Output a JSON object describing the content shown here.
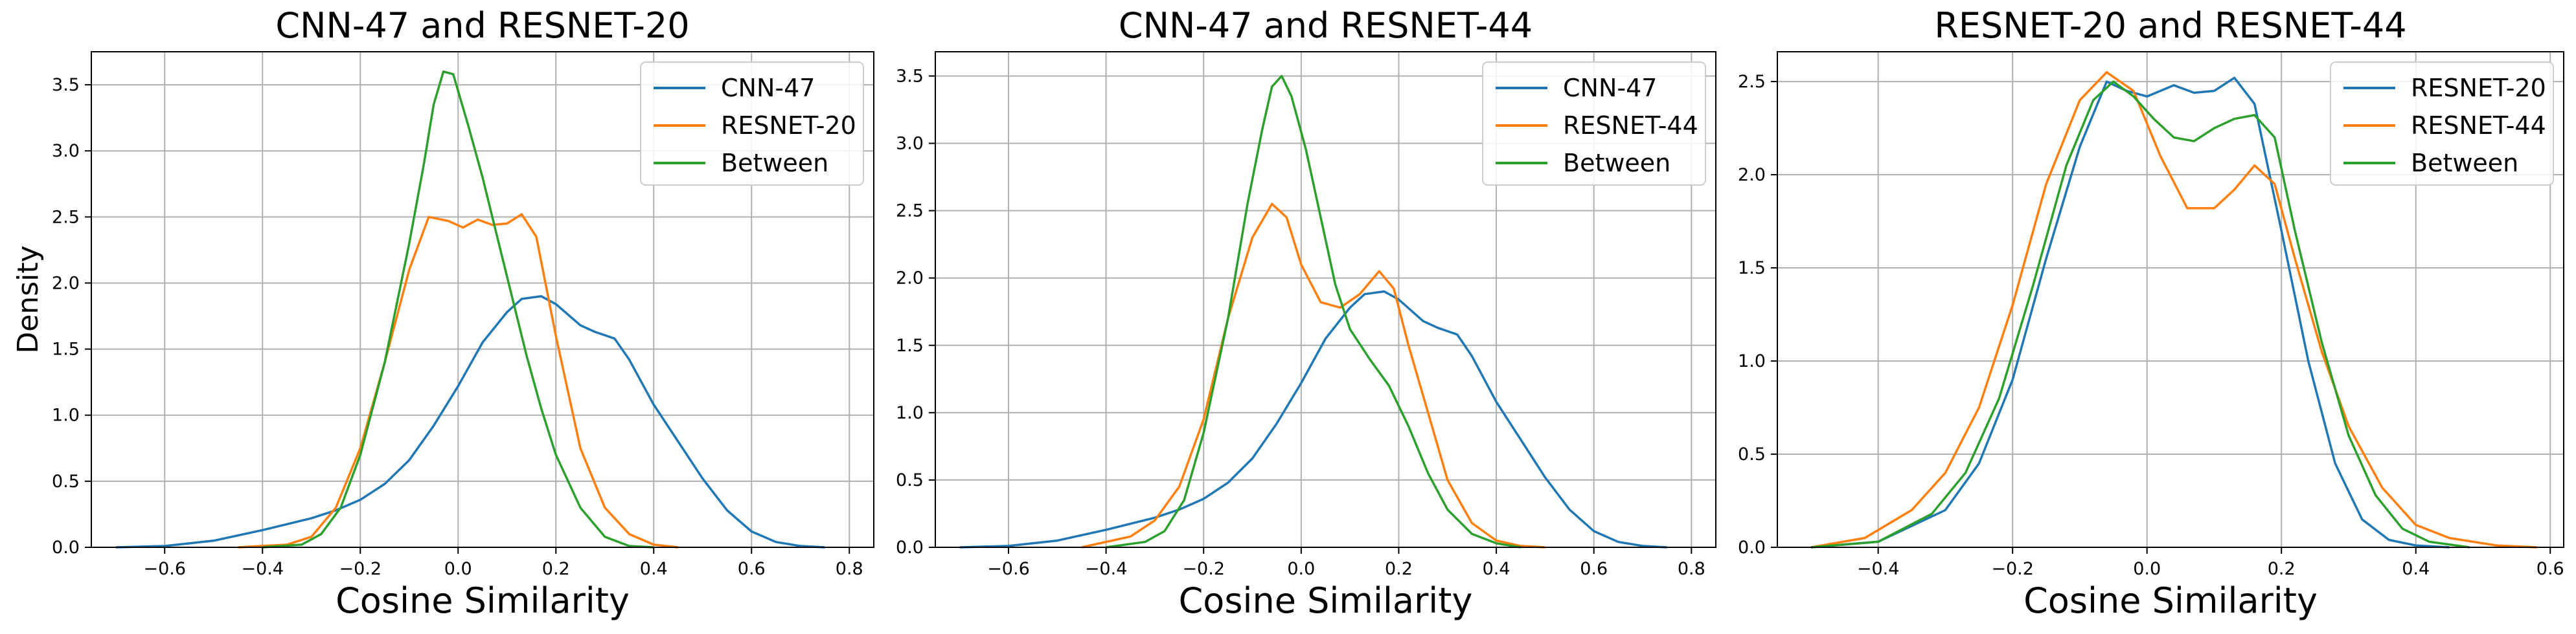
{
  "chart_data": [
    {
      "type": "line",
      "title": "CNN-47 and RESNET-20",
      "xlabel": "Cosine Similarity",
      "ylabel": "Density",
      "xlim": [
        -0.75,
        0.85
      ],
      "ylim": [
        0,
        3.75
      ],
      "xticks": [
        "−0.6",
        "−0.4",
        "−0.2",
        "0.0",
        "0.2",
        "0.4",
        "0.6",
        "0.8"
      ],
      "xtick_values": [
        -0.6,
        -0.4,
        -0.2,
        0.0,
        0.2,
        0.4,
        0.6,
        0.8
      ],
      "yticks": [
        "0.0",
        "0.5",
        "1.0",
        "1.5",
        "2.0",
        "2.5",
        "3.0",
        "3.5"
      ],
      "ytick_values": [
        0,
        0.5,
        1.0,
        1.5,
        2.0,
        2.5,
        3.0,
        3.5
      ],
      "grid": true,
      "legend": "top-right",
      "series": [
        {
          "name": "CNN-47",
          "color": "#1f77b4",
          "points": [
            [
              -0.7,
              0
            ],
            [
              -0.6,
              0.01
            ],
            [
              -0.5,
              0.05
            ],
            [
              -0.4,
              0.13
            ],
            [
              -0.3,
              0.22
            ],
            [
              -0.25,
              0.28
            ],
            [
              -0.2,
              0.36
            ],
            [
              -0.15,
              0.48
            ],
            [
              -0.1,
              0.66
            ],
            [
              -0.05,
              0.92
            ],
            [
              0.0,
              1.22
            ],
            [
              0.05,
              1.55
            ],
            [
              0.1,
              1.78
            ],
            [
              0.13,
              1.88
            ],
            [
              0.17,
              1.9
            ],
            [
              0.2,
              1.84
            ],
            [
              0.25,
              1.68
            ],
            [
              0.28,
              1.63
            ],
            [
              0.32,
              1.58
            ],
            [
              0.35,
              1.42
            ],
            [
              0.4,
              1.08
            ],
            [
              0.45,
              0.8
            ],
            [
              0.5,
              0.52
            ],
            [
              0.55,
              0.28
            ],
            [
              0.6,
              0.12
            ],
            [
              0.65,
              0.04
            ],
            [
              0.7,
              0.01
            ],
            [
              0.75,
              0
            ]
          ]
        },
        {
          "name": "RESNET-20",
          "color": "#ff7f0e",
          "points": [
            [
              -0.45,
              0
            ],
            [
              -0.35,
              0.02
            ],
            [
              -0.3,
              0.08
            ],
            [
              -0.25,
              0.3
            ],
            [
              -0.2,
              0.75
            ],
            [
              -0.15,
              1.4
            ],
            [
              -0.1,
              2.1
            ],
            [
              -0.06,
              2.5
            ],
            [
              -0.02,
              2.47
            ],
            [
              0.01,
              2.42
            ],
            [
              0.04,
              2.48
            ],
            [
              0.07,
              2.44
            ],
            [
              0.1,
              2.45
            ],
            [
              0.13,
              2.52
            ],
            [
              0.16,
              2.35
            ],
            [
              0.2,
              1.6
            ],
            [
              0.25,
              0.75
            ],
            [
              0.3,
              0.3
            ],
            [
              0.35,
              0.1
            ],
            [
              0.4,
              0.02
            ],
            [
              0.45,
              0
            ]
          ]
        },
        {
          "name": "Between",
          "color": "#2ca02c",
          "points": [
            [
              -0.4,
              0
            ],
            [
              -0.32,
              0.02
            ],
            [
              -0.28,
              0.1
            ],
            [
              -0.24,
              0.3
            ],
            [
              -0.2,
              0.7
            ],
            [
              -0.15,
              1.4
            ],
            [
              -0.1,
              2.3
            ],
            [
              -0.07,
              2.9
            ],
            [
              -0.05,
              3.35
            ],
            [
              -0.03,
              3.6
            ],
            [
              -0.01,
              3.58
            ],
            [
              0.02,
              3.2
            ],
            [
              0.05,
              2.8
            ],
            [
              0.08,
              2.35
            ],
            [
              0.11,
              1.9
            ],
            [
              0.14,
              1.45
            ],
            [
              0.17,
              1.05
            ],
            [
              0.2,
              0.7
            ],
            [
              0.25,
              0.3
            ],
            [
              0.3,
              0.08
            ],
            [
              0.35,
              0.01
            ],
            [
              0.4,
              0
            ]
          ]
        }
      ]
    },
    {
      "type": "line",
      "title": "CNN-47 and RESNET-44",
      "xlabel": "Cosine Similarity",
      "ylabel": "",
      "xlim": [
        -0.75,
        0.85
      ],
      "ylim": [
        0,
        3.68
      ],
      "xticks": [
        "−0.6",
        "−0.4",
        "−0.2",
        "0.0",
        "0.2",
        "0.4",
        "0.6",
        "0.8"
      ],
      "xtick_values": [
        -0.6,
        -0.4,
        -0.2,
        0.0,
        0.2,
        0.4,
        0.6,
        0.8
      ],
      "yticks": [
        "0.0",
        "0.5",
        "1.0",
        "1.5",
        "2.0",
        "2.5",
        "3.0",
        "3.5"
      ],
      "ytick_values": [
        0,
        0.5,
        1.0,
        1.5,
        2.0,
        2.5,
        3.0,
        3.5
      ],
      "grid": true,
      "legend": "top-right",
      "series": [
        {
          "name": "CNN-47",
          "color": "#1f77b4",
          "points": [
            [
              -0.7,
              0
            ],
            [
              -0.6,
              0.01
            ],
            [
              -0.5,
              0.05
            ],
            [
              -0.4,
              0.13
            ],
            [
              -0.3,
              0.22
            ],
            [
              -0.25,
              0.28
            ],
            [
              -0.2,
              0.36
            ],
            [
              -0.15,
              0.48
            ],
            [
              -0.1,
              0.66
            ],
            [
              -0.05,
              0.92
            ],
            [
              0.0,
              1.22
            ],
            [
              0.05,
              1.55
            ],
            [
              0.1,
              1.78
            ],
            [
              0.13,
              1.88
            ],
            [
              0.17,
              1.9
            ],
            [
              0.2,
              1.84
            ],
            [
              0.25,
              1.68
            ],
            [
              0.28,
              1.63
            ],
            [
              0.32,
              1.58
            ],
            [
              0.35,
              1.42
            ],
            [
              0.4,
              1.08
            ],
            [
              0.45,
              0.8
            ],
            [
              0.5,
              0.52
            ],
            [
              0.55,
              0.28
            ],
            [
              0.6,
              0.12
            ],
            [
              0.65,
              0.04
            ],
            [
              0.7,
              0.01
            ],
            [
              0.75,
              0
            ]
          ]
        },
        {
          "name": "RESNET-44",
          "color": "#ff7f0e",
          "points": [
            [
              -0.45,
              0
            ],
            [
              -0.35,
              0.08
            ],
            [
              -0.3,
              0.2
            ],
            [
              -0.25,
              0.45
            ],
            [
              -0.2,
              0.95
            ],
            [
              -0.15,
              1.7
            ],
            [
              -0.1,
              2.3
            ],
            [
              -0.06,
              2.55
            ],
            [
              -0.03,
              2.45
            ],
            [
              0.0,
              2.1
            ],
            [
              0.04,
              1.82
            ],
            [
              0.08,
              1.78
            ],
            [
              0.12,
              1.88
            ],
            [
              0.16,
              2.05
            ],
            [
              0.19,
              1.92
            ],
            [
              0.22,
              1.5
            ],
            [
              0.26,
              1.0
            ],
            [
              0.3,
              0.5
            ],
            [
              0.35,
              0.18
            ],
            [
              0.4,
              0.05
            ],
            [
              0.45,
              0.01
            ],
            [
              0.5,
              0
            ]
          ]
        },
        {
          "name": "Between",
          "color": "#2ca02c",
          "points": [
            [
              -0.4,
              0
            ],
            [
              -0.32,
              0.04
            ],
            [
              -0.28,
              0.12
            ],
            [
              -0.24,
              0.35
            ],
            [
              -0.2,
              0.85
            ],
            [
              -0.15,
              1.7
            ],
            [
              -0.11,
              2.55
            ],
            [
              -0.08,
              3.1
            ],
            [
              -0.06,
              3.42
            ],
            [
              -0.04,
              3.5
            ],
            [
              -0.02,
              3.35
            ],
            [
              0.01,
              2.95
            ],
            [
              0.04,
              2.45
            ],
            [
              0.07,
              1.95
            ],
            [
              0.1,
              1.62
            ],
            [
              0.14,
              1.4
            ],
            [
              0.18,
              1.2
            ],
            [
              0.22,
              0.9
            ],
            [
              0.26,
              0.55
            ],
            [
              0.3,
              0.28
            ],
            [
              0.35,
              0.1
            ],
            [
              0.4,
              0.03
            ],
            [
              0.45,
              0
            ]
          ]
        }
      ]
    },
    {
      "type": "line",
      "title": "RESNET-20 and RESNET-44",
      "xlabel": "Cosine Similarity",
      "ylabel": "",
      "xlim": [
        -0.55,
        0.62
      ],
      "ylim": [
        0,
        2.66
      ],
      "xticks": [
        "−0.4",
        "−0.2",
        "0.0",
        "0.2",
        "0.4",
        "0.6"
      ],
      "xtick_values": [
        -0.4,
        -0.2,
        0.0,
        0.2,
        0.4,
        0.6
      ],
      "yticks": [
        "0.0",
        "0.5",
        "1.0",
        "1.5",
        "2.0",
        "2.5"
      ],
      "ytick_values": [
        0,
        0.5,
        1.0,
        1.5,
        2.0,
        2.5
      ],
      "grid": true,
      "legend": "top-right",
      "series": [
        {
          "name": "RESNET-20",
          "color": "#1f77b4",
          "points": [
            [
              -0.5,
              0
            ],
            [
              -0.4,
              0.03
            ],
            [
              -0.3,
              0.2
            ],
            [
              -0.25,
              0.45
            ],
            [
              -0.2,
              0.9
            ],
            [
              -0.15,
              1.55
            ],
            [
              -0.1,
              2.15
            ],
            [
              -0.06,
              2.5
            ],
            [
              -0.03,
              2.45
            ],
            [
              0.0,
              2.42
            ],
            [
              0.04,
              2.48
            ],
            [
              0.07,
              2.44
            ],
            [
              0.1,
              2.45
            ],
            [
              0.13,
              2.52
            ],
            [
              0.16,
              2.38
            ],
            [
              0.2,
              1.7
            ],
            [
              0.24,
              1.0
            ],
            [
              0.28,
              0.45
            ],
            [
              0.32,
              0.15
            ],
            [
              0.36,
              0.04
            ],
            [
              0.4,
              0.01
            ],
            [
              0.45,
              0
            ]
          ]
        },
        {
          "name": "RESNET-44",
          "color": "#ff7f0e",
          "points": [
            [
              -0.5,
              0
            ],
            [
              -0.42,
              0.05
            ],
            [
              -0.35,
              0.2
            ],
            [
              -0.3,
              0.4
            ],
            [
              -0.25,
              0.75
            ],
            [
              -0.2,
              1.3
            ],
            [
              -0.15,
              1.95
            ],
            [
              -0.1,
              2.4
            ],
            [
              -0.06,
              2.55
            ],
            [
              -0.02,
              2.45
            ],
            [
              0.02,
              2.1
            ],
            [
              0.06,
              1.82
            ],
            [
              0.1,
              1.82
            ],
            [
              0.13,
              1.92
            ],
            [
              0.16,
              2.05
            ],
            [
              0.19,
              1.95
            ],
            [
              0.22,
              1.55
            ],
            [
              0.26,
              1.05
            ],
            [
              0.3,
              0.65
            ],
            [
              0.35,
              0.32
            ],
            [
              0.4,
              0.12
            ],
            [
              0.45,
              0.05
            ],
            [
              0.52,
              0.01
            ],
            [
              0.58,
              0
            ]
          ]
        },
        {
          "name": "Between",
          "color": "#2ca02c",
          "points": [
            [
              -0.5,
              0
            ],
            [
              -0.4,
              0.03
            ],
            [
              -0.32,
              0.18
            ],
            [
              -0.27,
              0.4
            ],
            [
              -0.22,
              0.8
            ],
            [
              -0.17,
              1.4
            ],
            [
              -0.12,
              2.05
            ],
            [
              -0.08,
              2.4
            ],
            [
              -0.05,
              2.5
            ],
            [
              -0.02,
              2.42
            ],
            [
              0.01,
              2.3
            ],
            [
              0.04,
              2.2
            ],
            [
              0.07,
              2.18
            ],
            [
              0.1,
              2.25
            ],
            [
              0.13,
              2.3
            ],
            [
              0.16,
              2.32
            ],
            [
              0.19,
              2.2
            ],
            [
              0.22,
              1.7
            ],
            [
              0.26,
              1.1
            ],
            [
              0.3,
              0.6
            ],
            [
              0.34,
              0.28
            ],
            [
              0.38,
              0.1
            ],
            [
              0.42,
              0.03
            ],
            [
              0.48,
              0
            ]
          ]
        }
      ]
    }
  ]
}
